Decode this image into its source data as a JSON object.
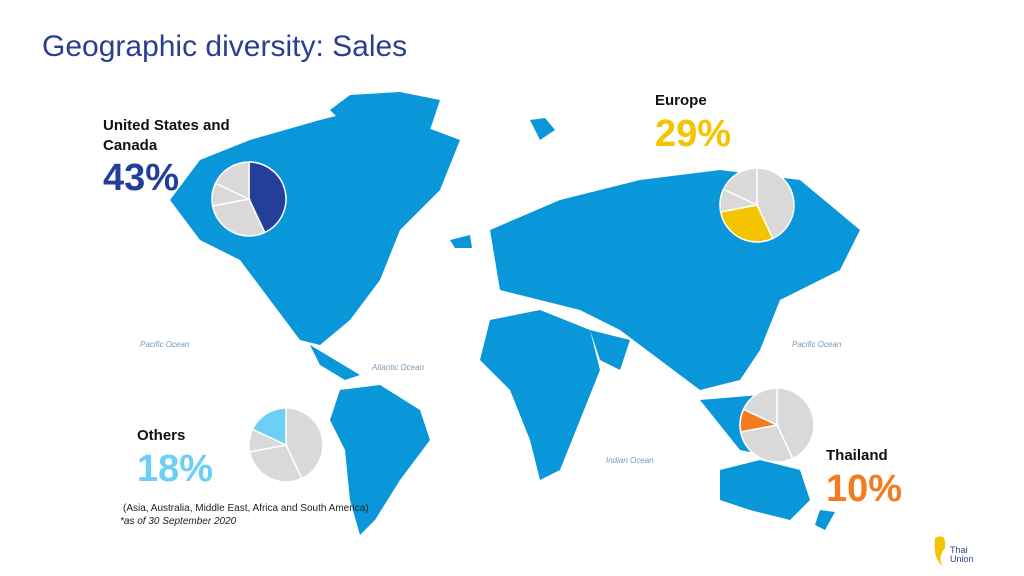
{
  "title": "Geographic diversity: Sales",
  "chart_data": {
    "type": "pie",
    "categories": [
      "United States and Canada",
      "Europe",
      "Thailand",
      "Others"
    ],
    "values": [
      43,
      29,
      10,
      18
    ],
    "value_labels": [
      "43%",
      "29%",
      "10%",
      "18%"
    ],
    "colors": [
      "#233f98",
      "#f5c400",
      "#f47b20",
      "#6ccff6"
    ]
  },
  "others_note": "(Asia, Australia, Middle East, Africa and South America)",
  "footnote": "*as of 30 September 2020",
  "map_labels": [
    "Pacific Ocean",
    "Atlantic Ocean",
    "Indian Ocean",
    "Pacific Ocean"
  ],
  "logo": "Thai Union"
}
